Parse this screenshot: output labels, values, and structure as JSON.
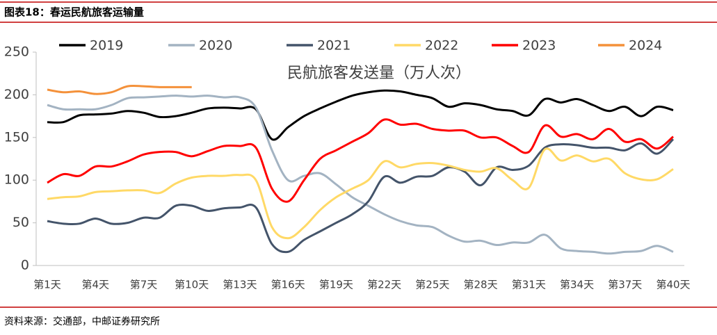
{
  "header": {
    "title": "图表18：春运民航旅客运输量"
  },
  "footer": {
    "source": "资料来源：交通部，中邮证券研究所"
  },
  "chart_data": {
    "type": "line",
    "title": "民航旅客发送量（万人次）",
    "categories": [
      "第1天",
      null,
      null,
      "第4天",
      null,
      null,
      "第7天",
      null,
      null,
      "第10天",
      null,
      null,
      "第13天",
      null,
      null,
      "第16天",
      null,
      null,
      "第19天",
      null,
      null,
      "第22天",
      null,
      null,
      "第25天",
      null,
      null,
      "第28天",
      null,
      null,
      "第31天",
      null,
      null,
      "第34天",
      null,
      null,
      "第37天",
      null,
      null,
      "第40天"
    ],
    "ylim": [
      0,
      250
    ],
    "yticks": [
      0,
      50,
      100,
      150,
      200,
      250
    ],
    "grid": false,
    "legend": "top",
    "series": [
      {
        "name": "2019",
        "color": "#000000",
        "values": [
          168,
          168,
          176,
          177,
          178,
          181,
          179,
          174,
          175,
          179,
          184,
          185,
          184,
          183,
          148,
          162,
          175,
          184,
          192,
          199,
          203,
          205,
          204,
          200,
          196,
          186,
          190,
          188,
          183,
          181,
          176,
          195,
          191,
          195,
          188,
          181,
          186,
          175,
          186,
          182
        ]
      },
      {
        "name": "2020",
        "color": "#a3b3c2",
        "values": [
          188,
          183,
          183,
          183,
          188,
          196,
          197,
          198,
          199,
          198,
          199,
          197,
          197,
          185,
          135,
          100,
          105,
          108,
          95,
          80,
          70,
          60,
          52,
          47,
          45,
          35,
          28,
          29,
          24,
          27,
          27,
          36,
          20,
          17,
          16,
          14,
          16,
          17,
          23,
          16
        ]
      },
      {
        "name": "2021",
        "color": "#44546a",
        "values": [
          52,
          49,
          49,
          55,
          49,
          50,
          56,
          56,
          70,
          70,
          64,
          67,
          68,
          68,
          25,
          16,
          30,
          40,
          50,
          60,
          75,
          104,
          97,
          104,
          105,
          115,
          110,
          94,
          115,
          112,
          117,
          138,
          142,
          141,
          138,
          138,
          135,
          143,
          131,
          148
        ]
      },
      {
        "name": "2022",
        "color": "#ffd966",
        "values": [
          78,
          80,
          81,
          86,
          87,
          88,
          88,
          85,
          96,
          103,
          105,
          105,
          106,
          100,
          45,
          32,
          45,
          65,
          80,
          90,
          100,
          122,
          115,
          119,
          120,
          117,
          112,
          110,
          114,
          100,
          91,
          136,
          123,
          129,
          122,
          125,
          108,
          101,
          101,
          113
        ]
      },
      {
        "name": "2023",
        "color": "#ff0000",
        "values": [
          97,
          107,
          105,
          116,
          116,
          122,
          130,
          133,
          133,
          128,
          134,
          140,
          140,
          138,
          90,
          75,
          100,
          125,
          135,
          145,
          155,
          171,
          165,
          166,
          160,
          158,
          158,
          150,
          150,
          140,
          133,
          164,
          151,
          154,
          148,
          160,
          145,
          148,
          137,
          151
        ]
      },
      {
        "name": "2024",
        "color": "#f4913a",
        "values": [
          206,
          203,
          204,
          201,
          203,
          210,
          210,
          209,
          209,
          209,
          null,
          null,
          null,
          null,
          null,
          null,
          null,
          null,
          null,
          null,
          null,
          null,
          null,
          null,
          null,
          null,
          null,
          null,
          null,
          null,
          null,
          null,
          null,
          null,
          null,
          null,
          null,
          null,
          null,
          null
        ]
      }
    ]
  }
}
